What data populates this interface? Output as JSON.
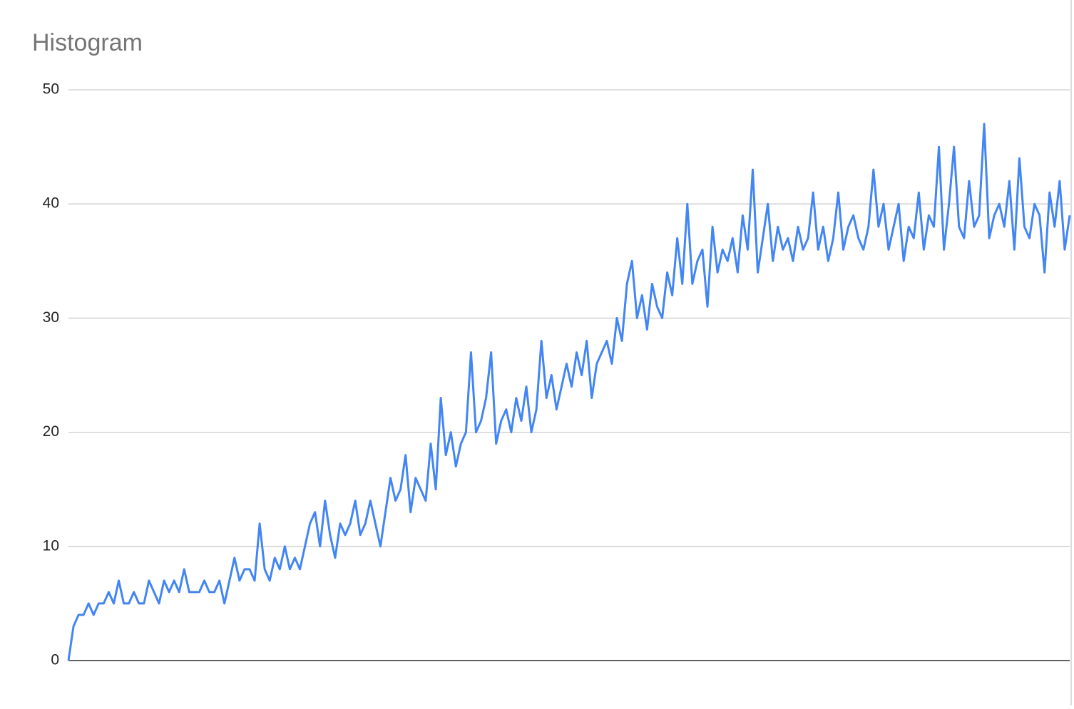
{
  "chart_data": {
    "type": "line",
    "title": "Histogram",
    "series": [
      {
        "color": "#4285f4",
        "values": [
          0,
          3,
          4,
          4,
          5,
          4,
          5,
          5,
          6,
          5,
          7,
          5,
          5,
          6,
          5,
          5,
          7,
          6,
          5,
          7,
          6,
          7,
          6,
          8,
          6,
          6,
          6,
          7,
          6,
          6,
          7,
          5,
          7,
          9,
          7,
          8,
          8,
          7,
          12,
          8,
          7,
          9,
          8,
          10,
          8,
          9,
          8,
          10,
          12,
          13,
          10,
          14,
          11,
          9,
          12,
          11,
          12,
          14,
          11,
          12,
          14,
          12,
          10,
          13,
          16,
          14,
          15,
          18,
          13,
          16,
          15,
          14,
          19,
          15,
          23,
          18,
          20,
          17,
          19,
          20,
          27,
          20,
          21,
          23,
          27,
          19,
          21,
          22,
          20,
          23,
          21,
          24,
          20,
          22,
          28,
          23,
          25,
          22,
          24,
          26,
          24,
          27,
          25,
          28,
          23,
          26,
          27,
          28,
          26,
          30,
          28,
          33,
          35,
          30,
          32,
          29,
          33,
          31,
          30,
          34,
          32,
          37,
          33,
          40,
          33,
          35,
          36,
          31,
          38,
          34,
          36,
          35,
          37,
          34,
          39,
          36,
          43,
          34,
          37,
          40,
          35,
          38,
          36,
          37,
          35,
          38,
          36,
          37,
          41,
          36,
          38,
          35,
          37,
          41,
          36,
          38,
          39,
          37,
          36,
          38,
          43,
          38,
          40,
          36,
          38,
          40,
          35,
          38,
          37,
          41,
          36,
          39,
          38,
          45,
          36,
          40,
          45,
          38,
          37,
          42,
          38,
          39,
          47,
          37,
          39,
          40,
          38,
          42,
          36,
          44,
          38,
          37,
          40,
          39,
          34,
          41,
          38,
          42,
          36,
          39
        ]
      }
    ],
    "ylim": [
      0,
      50
    ],
    "yticks": [
      0,
      10,
      20,
      30,
      40,
      50
    ],
    "grid": true
  }
}
